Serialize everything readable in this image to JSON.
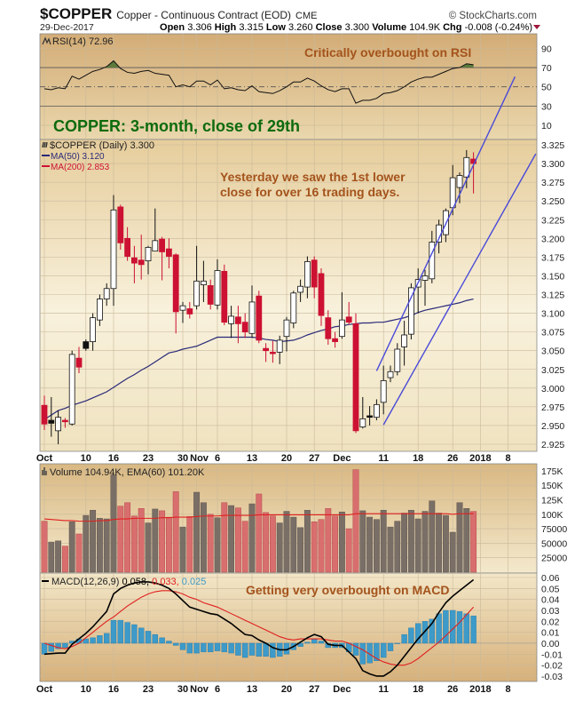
{
  "header": {
    "symbol": "$COPPER",
    "name": "Copper - Continuous Contract (EOD)",
    "exchange": "CME",
    "brand": "© StockCharts.com",
    "date": "29-Dec-2017",
    "open_label": "Open",
    "open": "3.306",
    "high_label": "High",
    "high": "3.315",
    "low_label": "Low",
    "low": "3.260",
    "close_label": "Close",
    "close": "3.300",
    "volume_label": "Volume",
    "volume": "104.9K",
    "chg_label": "Chg",
    "chg": "-0.008 (-0.24%)",
    "chg_direction": "down"
  },
  "annotations": {
    "rsi_note": "Critically overbought on RSI",
    "title_note": "COPPER: 3-month, close of 29th",
    "price_note_1": "Yesterday we saw the 1st lower",
    "price_note_2": "close for over 16 trading days.",
    "macd_note": "Getting very overbought on MACD"
  },
  "colors": {
    "up_hollow": "#ffffff",
    "down_red": "#cc1133",
    "black": "#111111",
    "ma50": "#2a2a78",
    "ma200": "#cc1133",
    "trendline": "#4a4ad8",
    "vol_up": "#7a6f66",
    "vol_down": "#d86e6e",
    "ema60": "#e02020",
    "macd": "#000000",
    "signal": "#e02020",
    "hist": "#3d9ac9",
    "rsi_fill": "#5d7a3c",
    "annotation": "#a4531c",
    "title_note": "#0d6b0d"
  },
  "chart_data": {
    "type": "candlestick",
    "x_ticks": [
      {
        "label": "Oct",
        "date": "2017-10-02"
      },
      {
        "label": "10",
        "date": "2017-10-10"
      },
      {
        "label": "16",
        "date": "2017-10-16"
      },
      {
        "label": "23",
        "date": "2017-10-23"
      },
      {
        "label": "30",
        "date": "2017-10-30"
      },
      {
        "label": "Nov",
        "date": "2017-11-01"
      },
      {
        "label": "6",
        "date": "2017-11-06"
      },
      {
        "label": "13",
        "date": "2017-11-13"
      },
      {
        "label": "20",
        "date": "2017-11-20"
      },
      {
        "label": "27",
        "date": "2017-11-27"
      },
      {
        "label": "Dec",
        "date": "2017-12-01"
      },
      {
        "label": "11",
        "date": "2017-12-11"
      },
      {
        "label": "18",
        "date": "2017-12-18"
      },
      {
        "label": "26",
        "date": "2017-12-26"
      },
      {
        "label": "2018",
        "date": "2018-01-02"
      },
      {
        "label": "8",
        "date": "2018-01-08"
      }
    ],
    "price": {
      "legend": "$COPPER (Daily) 3.300",
      "ma50_legend": "MA(50) 3.120",
      "ma200_legend": "MA(200) 2.853",
      "ylim": [
        2.915,
        3.335
      ],
      "y_ticks": [
        "3.325",
        "3.300",
        "3.275",
        "3.250",
        "3.225",
        "3.200",
        "3.175",
        "3.150",
        "3.125",
        "3.100",
        "3.075",
        "3.050",
        "3.025",
        "3.000",
        "2.975",
        "2.950",
        "2.925"
      ],
      "candles_fields": [
        "date",
        "open",
        "high",
        "low",
        "close",
        "style"
      ],
      "candles": [
        [
          "2017-10-02",
          2.977,
          2.99,
          2.944,
          2.952,
          "red"
        ],
        [
          "2017-10-03",
          2.957,
          2.988,
          2.935,
          2.953,
          "black"
        ],
        [
          "2017-10-04",
          2.943,
          2.97,
          2.925,
          2.961,
          "hollow"
        ],
        [
          "2017-10-05",
          2.957,
          2.96,
          2.947,
          2.955,
          "red"
        ],
        [
          "2017-10-06",
          2.952,
          3.05,
          2.95,
          3.045,
          "hollow"
        ],
        [
          "2017-10-09",
          3.04,
          3.055,
          3.02,
          3.028,
          "red"
        ],
        [
          "2017-10-10",
          3.053,
          3.065,
          3.05,
          3.062,
          "black"
        ],
        [
          "2017-10-11",
          3.062,
          3.1,
          3.05,
          3.094,
          "hollow"
        ],
        [
          "2017-10-12",
          3.091,
          3.125,
          3.083,
          3.119,
          "hollow"
        ],
        [
          "2017-10-13",
          3.119,
          3.14,
          3.11,
          3.133,
          "hollow"
        ],
        [
          "2017-10-16",
          3.133,
          3.258,
          3.11,
          3.238,
          "hollow"
        ],
        [
          "2017-10-17",
          3.242,
          3.245,
          3.185,
          3.194,
          "red"
        ],
        [
          "2017-10-18",
          3.2,
          3.215,
          3.17,
          3.176,
          "red"
        ],
        [
          "2017-10-19",
          3.174,
          3.19,
          3.14,
          3.167,
          "red"
        ],
        [
          "2017-10-20",
          3.171,
          3.205,
          3.145,
          3.165,
          "red"
        ],
        [
          "2017-10-23",
          3.17,
          3.19,
          3.152,
          3.188,
          "hollow"
        ],
        [
          "2017-10-24",
          3.183,
          3.24,
          3.183,
          3.197,
          "hollow"
        ],
        [
          "2017-10-25",
          3.199,
          3.202,
          3.144,
          3.182,
          "red"
        ],
        [
          "2017-10-26",
          3.186,
          3.2,
          3.16,
          3.176,
          "red"
        ],
        [
          "2017-10-27",
          3.178,
          3.18,
          3.073,
          3.102,
          "red"
        ],
        [
          "2017-10-30",
          3.104,
          3.115,
          3.087,
          3.11,
          "hollow"
        ],
        [
          "2017-10-31",
          3.106,
          3.115,
          3.093,
          3.099,
          "red"
        ],
        [
          "2017-11-01",
          3.11,
          3.19,
          3.105,
          3.143,
          "hollow"
        ],
        [
          "2017-11-02",
          3.138,
          3.17,
          3.115,
          3.143,
          "hollow"
        ],
        [
          "2017-11-03",
          3.137,
          3.145,
          3.105,
          3.112,
          "red"
        ],
        [
          "2017-11-06",
          3.111,
          3.172,
          3.105,
          3.157,
          "hollow"
        ],
        [
          "2017-11-07",
          3.156,
          3.165,
          3.084,
          3.088,
          "red"
        ],
        [
          "2017-11-08",
          3.086,
          3.11,
          3.067,
          3.096,
          "hollow"
        ],
        [
          "2017-11-09",
          3.095,
          3.11,
          3.06,
          3.086,
          "red"
        ],
        [
          "2017-11-10",
          3.088,
          3.1,
          3.067,
          3.075,
          "red"
        ],
        [
          "2017-11-13",
          3.073,
          3.137,
          3.067,
          3.115,
          "hollow"
        ],
        [
          "2017-11-14",
          3.123,
          3.13,
          3.06,
          3.064,
          "red"
        ],
        [
          "2017-11-15",
          3.053,
          3.06,
          3.035,
          3.05,
          "red"
        ],
        [
          "2017-11-16",
          3.048,
          3.063,
          3.034,
          3.046,
          "red"
        ],
        [
          "2017-11-17",
          3.048,
          3.07,
          3.032,
          3.064,
          "hollow"
        ],
        [
          "2017-11-20",
          3.069,
          3.095,
          3.049,
          3.091,
          "hollow"
        ],
        [
          "2017-11-21",
          3.087,
          3.13,
          3.08,
          3.127,
          "hollow"
        ],
        [
          "2017-11-22",
          3.128,
          3.145,
          3.115,
          3.136,
          "hollow"
        ],
        [
          "2017-11-24",
          3.135,
          3.176,
          3.12,
          3.169,
          "hollow"
        ],
        [
          "2017-11-27",
          3.171,
          3.176,
          3.12,
          3.135,
          "red"
        ],
        [
          "2017-11-28",
          3.153,
          3.16,
          3.083,
          3.097,
          "red"
        ],
        [
          "2017-11-29",
          3.094,
          3.104,
          3.058,
          3.066,
          "red"
        ],
        [
          "2017-11-30",
          3.066,
          3.075,
          3.054,
          3.062,
          "red"
        ],
        [
          "2017-12-01",
          3.069,
          3.128,
          3.066,
          3.091,
          "hollow"
        ],
        [
          "2017-12-04",
          3.095,
          3.115,
          3.085,
          3.088,
          "red"
        ],
        [
          "2017-12-05",
          3.086,
          3.1,
          2.94,
          2.943,
          "red"
        ],
        [
          "2017-12-06",
          2.948,
          2.988,
          2.946,
          2.959,
          "hollow"
        ],
        [
          "2017-12-07",
          2.961,
          2.976,
          2.95,
          2.963,
          "black"
        ],
        [
          "2017-12-08",
          2.961,
          2.985,
          2.957,
          2.978,
          "hollow"
        ],
        [
          "2017-12-11",
          2.981,
          3.03,
          2.965,
          3.01,
          "hollow"
        ],
        [
          "2017-12-12",
          3.014,
          3.03,
          3.008,
          3.022,
          "hollow"
        ],
        [
          "2017-12-13",
          3.022,
          3.06,
          3.017,
          3.052,
          "hollow"
        ],
        [
          "2017-12-14",
          3.055,
          3.09,
          3.03,
          3.071,
          "hollow"
        ],
        [
          "2017-12-15",
          3.072,
          3.14,
          3.065,
          3.134,
          "hollow"
        ],
        [
          "2017-12-18",
          3.135,
          3.16,
          3.1,
          3.145,
          "hollow"
        ],
        [
          "2017-12-19",
          3.144,
          3.158,
          3.11,
          3.15,
          "hollow"
        ],
        [
          "2017-12-20",
          3.146,
          3.21,
          3.14,
          3.195,
          "hollow"
        ],
        [
          "2017-12-21",
          3.195,
          3.225,
          3.18,
          3.218,
          "hollow"
        ],
        [
          "2017-12-22",
          3.205,
          3.24,
          3.195,
          3.237,
          "hollow"
        ],
        [
          "2017-12-26",
          3.241,
          3.298,
          3.231,
          3.281,
          "hollow"
        ],
        [
          "2017-12-27",
          3.268,
          3.288,
          3.247,
          3.284,
          "hollow"
        ],
        [
          "2017-12-28",
          3.282,
          3.318,
          3.267,
          3.308,
          "hollow"
        ],
        [
          "2017-12-29",
          3.306,
          3.315,
          3.26,
          3.3,
          "red"
        ]
      ],
      "ma50": [
        2.958,
        2.964,
        2.97,
        2.973,
        2.977,
        2.98,
        2.983,
        2.987,
        2.991,
        2.995,
        3.001,
        3.007,
        3.013,
        3.018,
        3.024,
        3.029,
        3.035,
        3.041,
        3.047,
        3.049,
        3.052,
        3.054,
        3.056,
        3.06,
        3.064,
        3.068,
        3.068,
        3.068,
        3.068,
        3.068,
        3.068,
        3.067,
        3.065,
        3.064,
        3.062,
        3.063,
        3.064,
        3.067,
        3.071,
        3.074,
        3.077,
        3.079,
        3.082,
        3.083,
        3.085,
        3.086,
        3.087,
        3.087,
        3.088,
        3.088,
        3.09,
        3.092,
        3.094,
        3.097,
        3.101,
        3.104,
        3.106,
        3.108,
        3.11,
        3.112,
        3.114,
        3.117,
        3.119
      ],
      "trendlines": [
        {
          "from": [
            "2017-12-08",
            3.023
          ],
          "to": [
            "2018-01-09",
            3.416
          ]
        },
        {
          "from": [
            "2017-12-11",
            2.951
          ],
          "to": [
            "2018-01-12",
            3.313
          ]
        }
      ]
    },
    "rsi": {
      "legend": "RSI(14) 72.96",
      "ylim": [
        0,
        104
      ],
      "y_ticks": [
        "90",
        "70",
        "50",
        "30",
        "10"
      ],
      "overbought": 70,
      "midline": 50,
      "oversold": 30,
      "values": [
        48,
        47,
        49,
        48,
        61,
        58,
        62,
        66,
        68,
        71,
        77,
        69,
        65,
        64,
        66,
        67,
        64,
        63,
        62,
        50,
        52,
        50,
        56,
        56,
        52,
        57,
        48,
        49,
        47,
        46,
        51,
        45,
        44,
        43,
        46,
        50,
        55,
        55,
        59,
        56,
        51,
        47,
        45,
        48,
        48,
        33,
        36,
        36,
        38,
        43,
        44,
        46,
        50,
        55,
        58,
        60,
        60,
        63,
        66,
        69,
        70,
        74,
        72.96
      ]
    },
    "volume": {
      "legend": "Volume 104.94K, EMA(60) 101.20K",
      "unit": "K",
      "ylim": [
        0,
        185
      ],
      "y_ticks": [
        {
          "label": "175K",
          "v": 175
        },
        {
          "label": "150K",
          "v": 150
        },
        {
          "label": "125K",
          "v": 125
        },
        {
          "label": "100K",
          "v": 100
        },
        {
          "label": "75000",
          "v": 75
        },
        {
          "label": "50000",
          "v": 50
        },
        {
          "label": "25000",
          "v": 25
        }
      ],
      "values": [
        88,
        52,
        54,
        45,
        87,
        66,
        98,
        107,
        93,
        92,
        168,
        114,
        120,
        97,
        110,
        85,
        109,
        106,
        95,
        139,
        78,
        96,
        138,
        120,
        100,
        94,
        120,
        115,
        111,
        88,
        118,
        135,
        103,
        97,
        85,
        105,
        95,
        77,
        107,
        87,
        91,
        110,
        97,
        104,
        75,
        177,
        106,
        95,
        91,
        107,
        78,
        88,
        102,
        107,
        92,
        105,
        123,
        102,
        98,
        69,
        120,
        110,
        104.94
      ],
      "down": [
        1,
        0,
        0,
        1,
        0,
        1,
        0,
        0,
        0,
        0,
        0,
        1,
        1,
        1,
        1,
        0,
        0,
        1,
        1,
        1,
        0,
        1,
        0,
        0,
        1,
        0,
        1,
        0,
        1,
        1,
        0,
        1,
        1,
        1,
        0,
        0,
        0,
        0,
        0,
        1,
        1,
        1,
        1,
        0,
        1,
        1,
        0,
        0,
        0,
        0,
        0,
        0,
        0,
        0,
        0,
        0,
        0,
        0,
        0,
        0,
        0,
        0,
        1
      ],
      "ema60": [
        92,
        91,
        90,
        89,
        89,
        88,
        88,
        88,
        89,
        89,
        91,
        92,
        92,
        93,
        93,
        93,
        93,
        94,
        94,
        95,
        95,
        95,
        96,
        97,
        97,
        97,
        98,
        98,
        98,
        98,
        98,
        99,
        99,
        99,
        99,
        99,
        99,
        99,
        99,
        99,
        99,
        99,
        99,
        99,
        99,
        101,
        101,
        101,
        101,
        101,
        101,
        101,
        101,
        101,
        101,
        101,
        101,
        101,
        101,
        100,
        101,
        101,
        101.2
      ]
    },
    "macd": {
      "legend_name": "MACD(12,26,9)",
      "legend_macd": "0.058,",
      "legend_signal": "0.033,",
      "legend_hist": "0.025",
      "ylim": [
        -0.037,
        0.064
      ],
      "y_ticks": [
        "0.06",
        "0.05",
        "0.04",
        "0.03",
        "0.02",
        "0.01",
        "0.00",
        "-0.01",
        "-0.02",
        "-0.03"
      ],
      "macd": [
        -0.01,
        -0.0095,
        -0.009,
        -0.009,
        -0.001,
        0.004,
        0.009,
        0.015,
        0.022,
        0.029,
        0.045,
        0.05,
        0.053,
        0.055,
        0.056,
        0.056,
        0.055,
        0.053,
        0.05,
        0.045,
        0.039,
        0.033,
        0.031,
        0.029,
        0.027,
        0.026,
        0.022,
        0.018,
        0.013,
        0.008,
        0.007,
        0.003,
        0.0,
        -0.004,
        -0.006,
        -0.006,
        -0.003,
        0.001,
        0.005,
        0.008,
        0.006,
        -0.001,
        -0.002,
        -0.002,
        -0.008,
        -0.014,
        -0.025,
        -0.028,
        -0.03,
        -0.03,
        -0.026,
        -0.02,
        -0.012,
        -0.004,
        0.004,
        0.011,
        0.018,
        0.028,
        0.037,
        0.043,
        0.048,
        0.053,
        0.058
      ],
      "signal": [
        0.0,
        -0.002,
        -0.004,
        -0.005,
        -0.003,
        0.0,
        0.005,
        0.01,
        0.015,
        0.02,
        0.024,
        0.029,
        0.034,
        0.038,
        0.042,
        0.045,
        0.047,
        0.048,
        0.048,
        0.047,
        0.045,
        0.042,
        0.04,
        0.037,
        0.035,
        0.033,
        0.03,
        0.027,
        0.024,
        0.021,
        0.018,
        0.015,
        0.012,
        0.009,
        0.006,
        0.004,
        0.003,
        0.004,
        0.004,
        0.004,
        0.004,
        0.003,
        0.002,
        0.002,
        0.0,
        -0.003,
        -0.006,
        -0.01,
        -0.014,
        -0.017,
        -0.019,
        -0.02,
        -0.02,
        -0.018,
        -0.014,
        -0.009,
        -0.004,
        0.001,
        0.007,
        0.013,
        0.019,
        0.026,
        0.033
      ],
      "histogram": [
        -0.01,
        -0.0075,
        -0.005,
        -0.004,
        0.002,
        0.004,
        0.004,
        0.005,
        0.007,
        0.009,
        0.021,
        0.021,
        0.019,
        0.017,
        0.014,
        0.011,
        0.008,
        0.005,
        0.002,
        -0.002,
        -0.006,
        -0.009,
        -0.009,
        -0.008,
        -0.008,
        -0.007,
        -0.008,
        -0.009,
        -0.011,
        -0.013,
        -0.011,
        -0.012,
        -0.012,
        -0.013,
        -0.012,
        -0.01,
        -0.006,
        -0.003,
        0.001,
        0.004,
        0.002,
        -0.004,
        -0.004,
        -0.004,
        -0.008,
        -0.011,
        -0.019,
        -0.018,
        -0.016,
        -0.013,
        -0.007,
        0.0,
        0.008,
        0.014,
        0.018,
        0.02,
        0.022,
        0.027,
        0.03,
        0.03,
        0.029,
        0.027,
        0.025
      ]
    }
  }
}
